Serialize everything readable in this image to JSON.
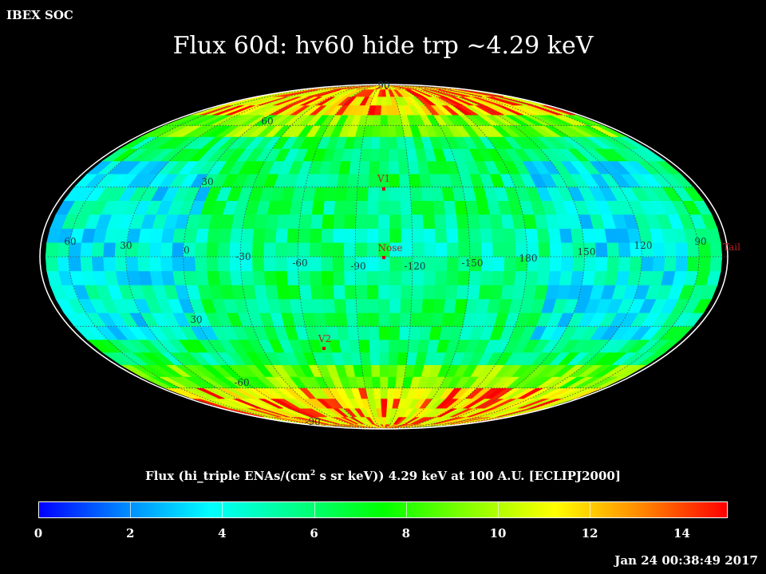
{
  "corner_label": "IBEX SOC",
  "title": "Flux   60d: hv60 hide trp ~4.29 keV",
  "chart_data": {
    "type": "heatmap",
    "projection": "mollweide",
    "coordinate_frame": "ECLIPJ2000",
    "colorbar": {
      "label_prefix": "Flux (hi_triple ENAs/(cm",
      "label_sup": "2",
      "label_suffix": " s sr keV))  4.29 keV at 100 A.U. [ECLIPJ2000]",
      "range": [
        0,
        15
      ],
      "ticks": [
        "0",
        "2",
        "4",
        "6",
        "8",
        "10",
        "12",
        "14"
      ],
      "colormap": [
        "#0000ff",
        "#0088ff",
        "#00ffff",
        "#00ff88",
        "#00ff00",
        "#88ff00",
        "#ffff00",
        "#ff8800",
        "#ff0000"
      ]
    },
    "meridian_labels": [
      "60",
      "30",
      "0",
      "-30",
      "-60",
      "-90",
      "-120",
      "-150",
      "180",
      "150",
      "120",
      "90"
    ],
    "latitude_labels": [
      "90",
      "60",
      "30",
      "30",
      "-60",
      "-90"
    ],
    "markers": [
      "V1",
      "Nose",
      "V2",
      "Tail"
    ],
    "flux_grid_ecliptic_6deg": {
      "lon_step_deg": 6,
      "lat_step_deg": 6,
      "regions": [
        {
          "description": "equatorial band",
          "typical_flux": 5.5
        },
        {
          "description": "low-flux lobes near lon 30 and lon 130",
          "typical_flux": 3.0
        },
        {
          "description": "mid latitudes",
          "typical_flux": 7.5
        },
        {
          "description": "high-latitude rim",
          "typical_flux": 11.5
        }
      ]
    }
  },
  "timestamp": "Jan 24 00:38:49 2017"
}
